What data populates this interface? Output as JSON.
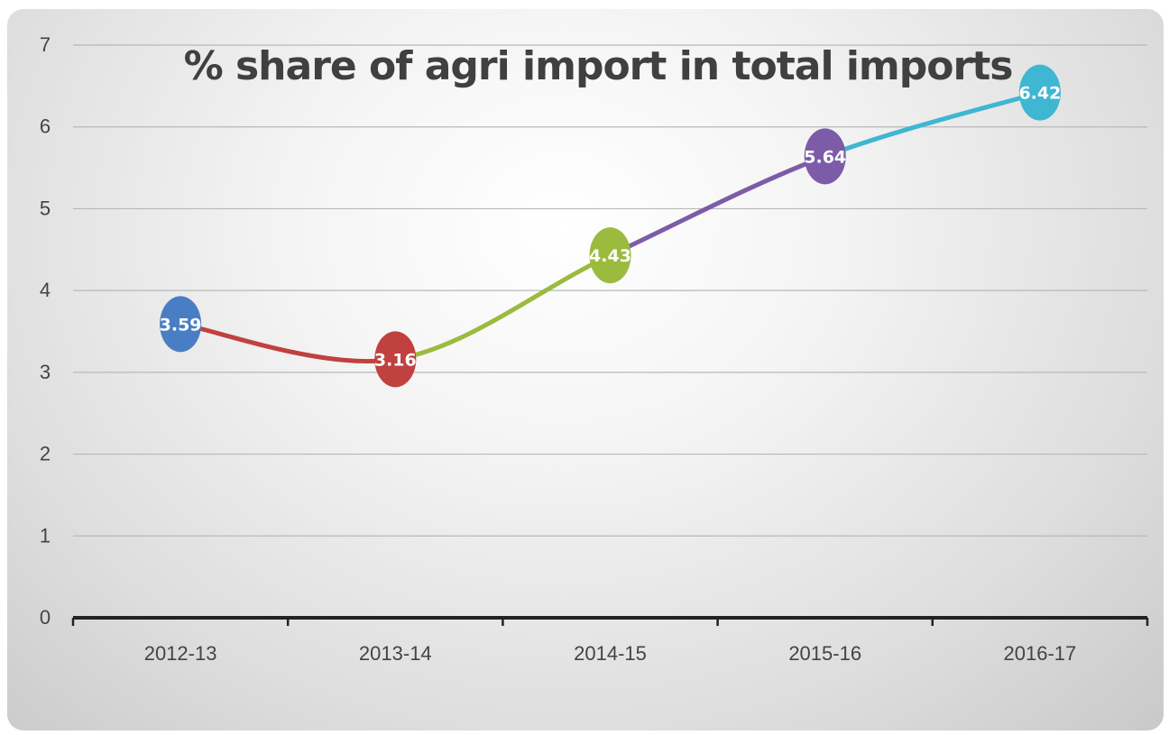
{
  "chart_data": {
    "type": "line",
    "title": "% share of agri import in total imports",
    "xlabel": "",
    "ylabel": "",
    "categories": [
      "2012-13",
      "2013-14",
      "2014-15",
      "2015-16",
      "2016-17"
    ],
    "values": [
      3.59,
      3.16,
      4.43,
      5.64,
      6.42
    ],
    "data_labels": [
      "3.59",
      "3.16",
      "4.43",
      "5.64",
      "6.42"
    ],
    "ylim": [
      0,
      7
    ],
    "yticks": [
      0,
      1,
      2,
      3,
      4,
      5,
      6,
      7
    ],
    "grid": true,
    "legend": "none",
    "smooth": true,
    "point_colors": [
      "#4a7ec4",
      "#c0413f",
      "#9bbb3f",
      "#7c5ca8",
      "#3fb6d2"
    ],
    "segment_colors": [
      "#c0413f",
      "#9bbb3f",
      "#7c5ca8",
      "#3fb6d2"
    ],
    "grid_color": "#b8b8b8",
    "axis_color": "#222222"
  }
}
